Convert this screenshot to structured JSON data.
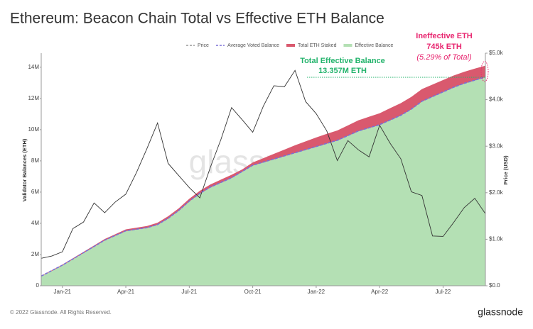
{
  "chart_data": {
    "type": "area",
    "title": "Ethereum: Beacon Chain Total vs Effective ETH Balance",
    "y_label": "Validator Balances (ETH)",
    "y2_label": "Price (USD)",
    "categories": [
      null,
      null,
      "Jan-21",
      null,
      null,
      null,
      null,
      null,
      "Apr-21",
      null,
      null,
      null,
      null,
      null,
      "Jul-21",
      null,
      null,
      null,
      null,
      null,
      "Oct-21",
      null,
      null,
      null,
      null,
      null,
      "Jan-22",
      null,
      null,
      null,
      null,
      null,
      "Apr-22",
      null,
      null,
      null,
      null,
      null,
      "Jul-22",
      null,
      null,
      null,
      null
    ],
    "ylim": [
      0,
      14900000
    ],
    "yticks": [
      {
        "value": 0,
        "label": "0"
      },
      {
        "value": 2000000,
        "label": "2M"
      },
      {
        "value": 4000000,
        "label": "4M"
      },
      {
        "value": 6000000,
        "label": "6M"
      },
      {
        "value": 8000000,
        "label": "8M"
      },
      {
        "value": 10000000,
        "label": "10M"
      },
      {
        "value": 12000000,
        "label": "12M"
      },
      {
        "value": 14000000,
        "label": "14M"
      }
    ],
    "y2lim": [
      0,
      5000
    ],
    "y2ticks": [
      {
        "value": 0,
        "label": "$0.0"
      },
      {
        "value": 1000,
        "label": "$1.0k"
      },
      {
        "value": 2000,
        "label": "$2.0k"
      },
      {
        "value": 3000,
        "label": "$3.0k"
      },
      {
        "value": 4000,
        "label": "$4.0k"
      },
      {
        "value": 5000,
        "label": "$5.0k"
      }
    ],
    "series": [
      {
        "name": "Price",
        "color": "#333333",
        "kind": "line",
        "axis": "y2",
        "values": [
          590,
          640,
          730,
          1230,
          1370,
          1780,
          1570,
          1800,
          1970,
          2430,
          2950,
          3500,
          2630,
          2370,
          2110,
          1890,
          2550,
          3150,
          3830,
          3570,
          3300,
          3860,
          4300,
          4280,
          4630,
          3960,
          3700,
          3330,
          2690,
          3120,
          2920,
          2770,
          3450,
          3060,
          2730,
          2020,
          1940,
          1070,
          1060,
          1360,
          1680,
          1880,
          1550
        ]
      },
      {
        "name": "Average Voted Balance",
        "color": "#7b6fd6",
        "kind": "dashed",
        "values": [
          620000,
          970000,
          1320000,
          1720000,
          2120000,
          2520000,
          2920000,
          3220000,
          3520000,
          3620000,
          3720000,
          3920000,
          4320000,
          4820000,
          5420000,
          5920000,
          6320000,
          6620000,
          6920000,
          7320000,
          7720000,
          7920000,
          8120000,
          8320000,
          8520000,
          8720000,
          8920000,
          9120000,
          9320000,
          9620000,
          9920000,
          10120000,
          10320000,
          10620000,
          10920000,
          11320000,
          11820000,
          12120000,
          12420000,
          12720000,
          12970000,
          13170000,
          13377000
        ]
      },
      {
        "name": "Total ETH Staked",
        "color": "#d9596e",
        "kind": "area",
        "values": [
          630000,
          990000,
          1350000,
          1760000,
          2170000,
          2580000,
          2990000,
          3300000,
          3610000,
          3720000,
          3830000,
          4040000,
          4450000,
          4960000,
          5570000,
          6080000,
          6490000,
          6800000,
          7110000,
          7450000,
          7900000,
          8170000,
          8450000,
          8720000,
          9000000,
          9250000,
          9500000,
          9730000,
          9950000,
          10270000,
          10600000,
          10830000,
          11050000,
          11380000,
          11700000,
          12100000,
          12600000,
          12890000,
          13180000,
          13470000,
          13710000,
          13910000,
          14102000
        ]
      },
      {
        "name": "Effective Balance",
        "color": "#b4e0b4",
        "kind": "area",
        "values": [
          600000,
          950000,
          1300000,
          1700000,
          2100000,
          2500000,
          2900000,
          3200000,
          3500000,
          3600000,
          3700000,
          3900000,
          4300000,
          4800000,
          5400000,
          5900000,
          6300000,
          6600000,
          6900000,
          7300000,
          7700000,
          7900000,
          8100000,
          8300000,
          8500000,
          8700000,
          8900000,
          9100000,
          9300000,
          9600000,
          9900000,
          10100000,
          10300000,
          10600000,
          10900000,
          11300000,
          11800000,
          12100000,
          12400000,
          12700000,
          12950000,
          13150000,
          13357000
        ]
      }
    ],
    "annotations": [
      {
        "text": "Total Effective Balance",
        "color": "#22b36b"
      },
      {
        "text": "13.357M ETH",
        "color": "#22b36b"
      },
      {
        "text": "Ineffective ETH",
        "color": "#e8256f"
      },
      {
        "text": "745k ETH",
        "color": "#e8256f"
      },
      {
        "text": "(5.29% of Total)",
        "color": "#e8256f"
      }
    ],
    "watermark": "glassnode",
    "footer": "© 2022 Glassnode. All Rights Reserved.",
    "brand": "glassnode"
  }
}
